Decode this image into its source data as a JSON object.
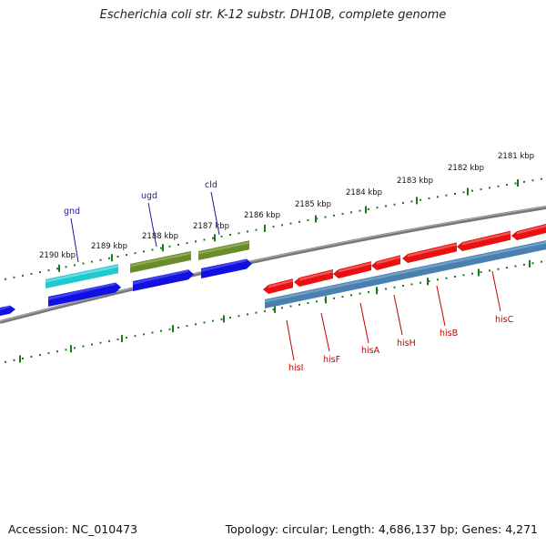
{
  "title": "Escherichia coli str. K-12 substr. DH10B, complete genome",
  "footer": {
    "accession": "Accession: NC_010473",
    "summary": "Topology: circular; Length: 4,686,137 bp; Genes: 4,271"
  },
  "colors": {
    "backbone": "#808080",
    "tick": "#1a7a1a",
    "label_blue": "#1a1aa0",
    "label_red": "#c00000",
    "cyan_gene": "#20c8d0",
    "olive_gene": "#6b8c2a",
    "blue_gene": "#1010e0",
    "red_gene": "#e81010",
    "steel_gene": "#4a80b0"
  },
  "tick_labels": [
    "2181 kbp",
    "2182 kbp",
    "2183 kbp",
    "2184 kbp",
    "2185 kbp",
    "2186 kbp",
    "2187 kbp",
    "2188 kbp",
    "2189 kbp",
    "2190 kbp"
  ],
  "gene_labels_upper": [
    "gnd",
    "ugd",
    "cld"
  ],
  "gene_labels_lower": [
    "hisI",
    "hisF",
    "hisA",
    "hisH",
    "hisB",
    "hisC"
  ]
}
